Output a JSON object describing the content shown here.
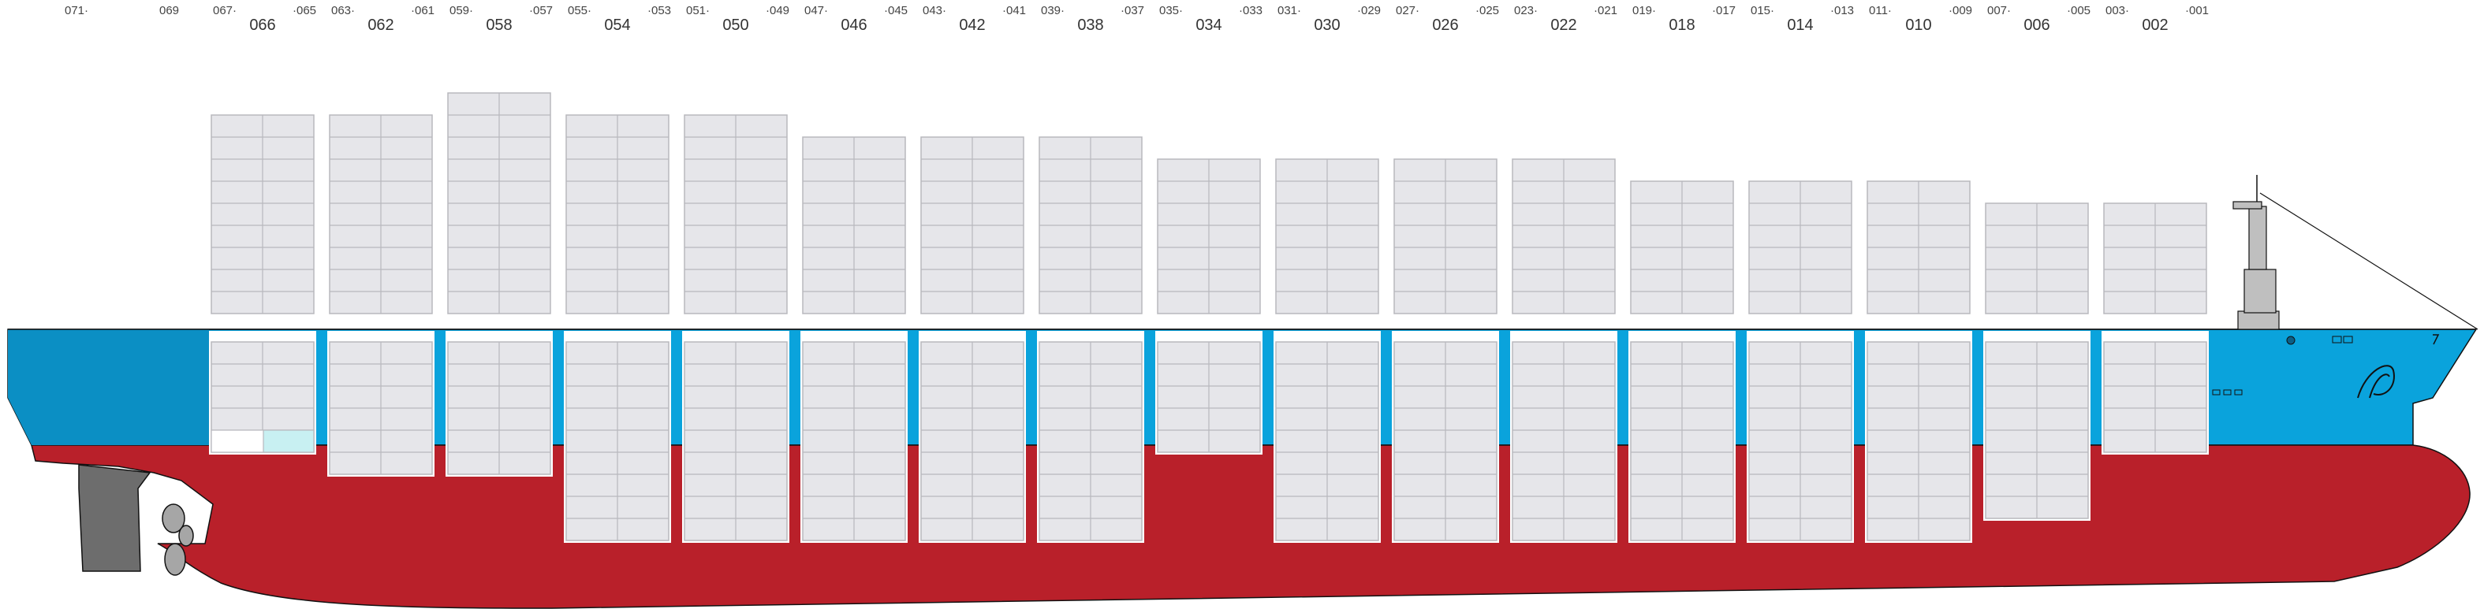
{
  "colors": {
    "upper_hull": "#0aa3dc",
    "upper_hull_dark": "#0b8fc4",
    "lower_hull": "#b9202a",
    "container_fill": "#e6e6ea",
    "container_grid": "#b8b8bd",
    "outline": "#111111",
    "highlight_cell": "#c8f0f2",
    "superstructure": "#bfbfbf",
    "rudder": "#6d6d6d",
    "propeller": "#a6a6a6"
  },
  "bays": [
    {
      "big": "066",
      "left": "067·",
      "right": "·065",
      "deck_rows": 9,
      "hold_rows": 5
    },
    {
      "big": "062",
      "left": "063·",
      "right": "·061",
      "deck_rows": 9,
      "hold_rows": 6
    },
    {
      "big": "058",
      "left": "059·",
      "right": "·057",
      "deck_rows": 10,
      "hold_rows": 6
    },
    {
      "big": "054",
      "left": "055·",
      "right": "·053",
      "deck_rows": 9,
      "hold_rows": 9
    },
    {
      "big": "050",
      "left": "051·",
      "right": "·049",
      "deck_rows": 9,
      "hold_rows": 9
    },
    {
      "big": "046",
      "left": "047·",
      "right": "·045",
      "deck_rows": 8,
      "hold_rows": 9
    },
    {
      "big": "042",
      "left": "043·",
      "right": "·041",
      "deck_rows": 8,
      "hold_rows": 9
    },
    {
      "big": "038",
      "left": "039·",
      "right": "·037",
      "deck_rows": 8,
      "hold_rows": 9
    },
    {
      "big": "034",
      "left": "035·",
      "right": "·033",
      "deck_rows": 7,
      "hold_rows": 5
    },
    {
      "big": "030",
      "left": "031·",
      "right": "·029",
      "deck_rows": 7,
      "hold_rows": 9
    },
    {
      "big": "026",
      "left": "027·",
      "right": "·025",
      "deck_rows": 7,
      "hold_rows": 9
    },
    {
      "big": "022",
      "left": "023·",
      "right": "·021",
      "deck_rows": 7,
      "hold_rows": 9
    },
    {
      "big": "018",
      "left": "019·",
      "right": "·017",
      "deck_rows": 6,
      "hold_rows": 9
    },
    {
      "big": "014",
      "left": "015·",
      "right": "·013",
      "deck_rows": 6,
      "hold_rows": 9
    },
    {
      "big": "010",
      "left": "011·",
      "right": "·009",
      "deck_rows": 6,
      "hold_rows": 9
    },
    {
      "big": "006",
      "left": "007·",
      "right": "·005",
      "deck_rows": 5,
      "hold_rows": 8
    },
    {
      "big": "002",
      "left": "003·",
      "right": "·001",
      "deck_rows": 5,
      "hold_rows": 5
    }
  ],
  "aft_labels": [
    "071·",
    "069"
  ]
}
